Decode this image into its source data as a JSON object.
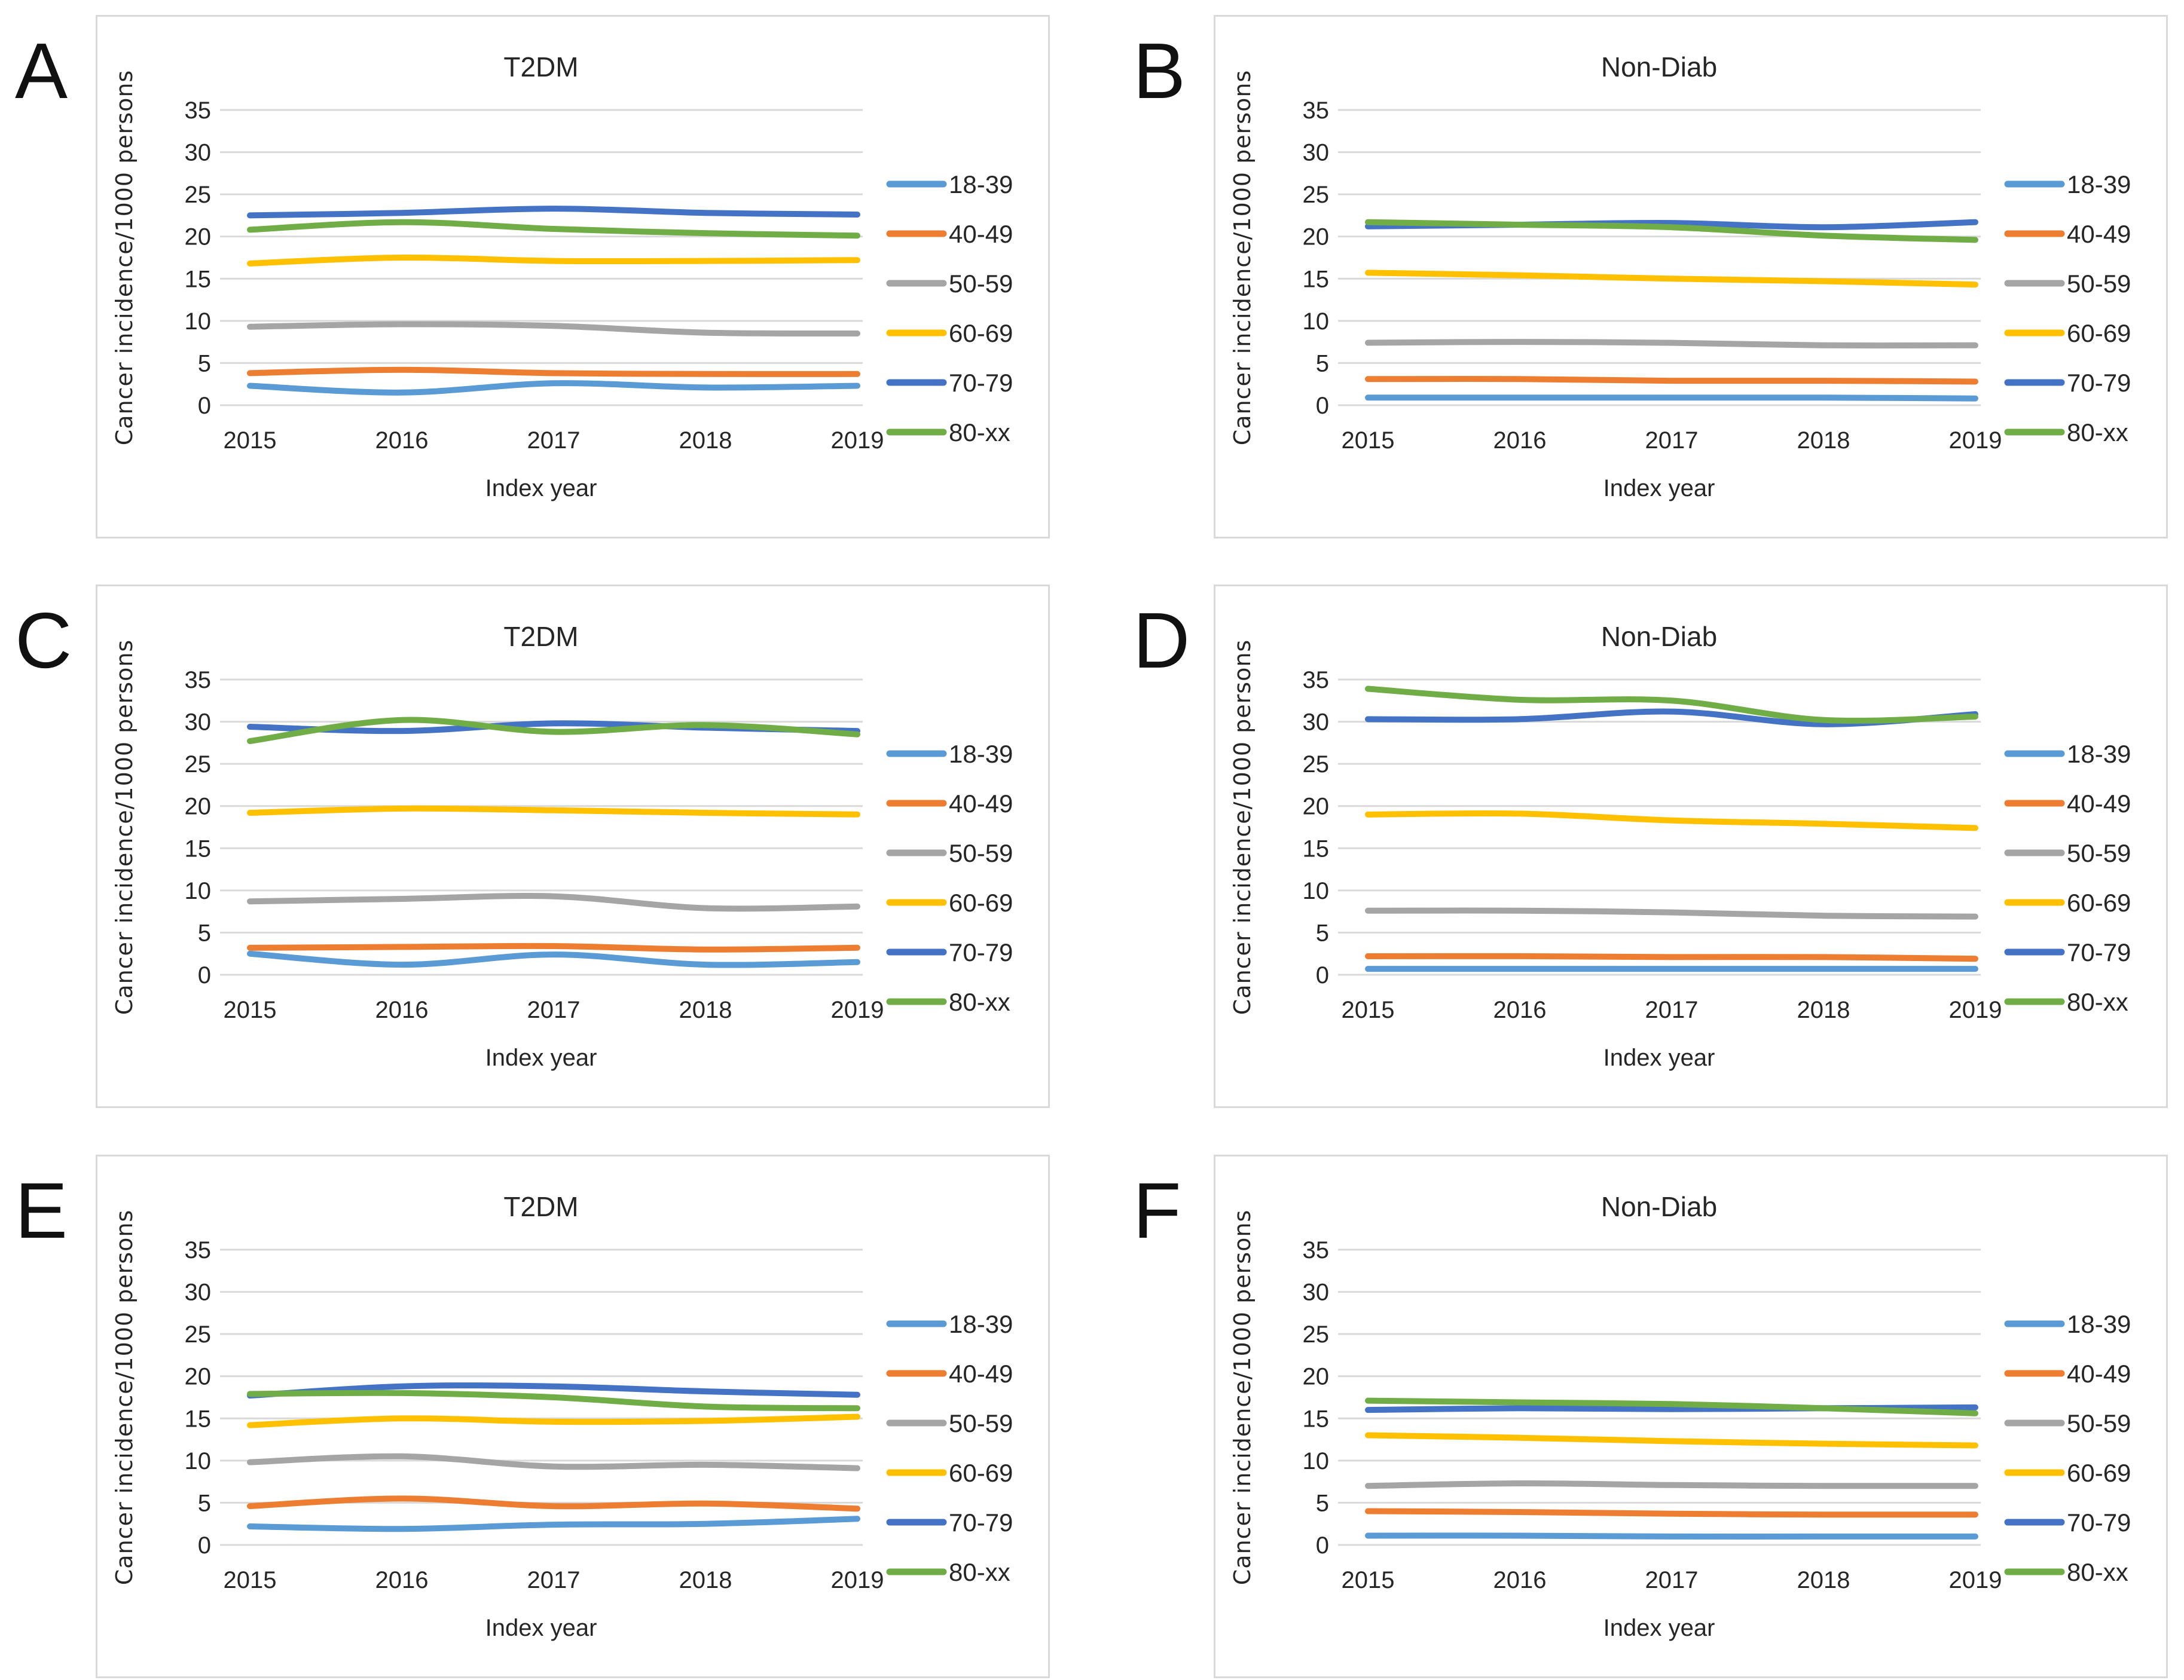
{
  "palette": {
    "18-39": "#5B9BD5",
    "40-49": "#ED7D31",
    "50-59": "#A5A5A5",
    "60-69": "#FFC000",
    "70-79": "#4472C4",
    "80-xx": "#70AD47"
  },
  "ui_colors": {
    "gridline": "#D9D9D9",
    "panel_border": "#D9D9D9",
    "text": "#262626"
  },
  "chart_data": [
    {
      "panel": "A",
      "type": "line",
      "title": "T2DM",
      "x": [
        2015,
        2016,
        2017,
        2018,
        2019
      ],
      "xlabel": "Index year",
      "ylabel": "Cancer incidence/1000 persons",
      "ylim": [
        0,
        35
      ],
      "yticks": [
        0,
        5,
        10,
        15,
        20,
        25,
        30,
        35
      ],
      "grid": "horizontal",
      "legend_position": "right",
      "series": [
        {
          "name": "18-39",
          "values": [
            2.3,
            1.5,
            2.6,
            2.1,
            2.3
          ]
        },
        {
          "name": "40-49",
          "values": [
            3.8,
            4.2,
            3.8,
            3.7,
            3.7
          ]
        },
        {
          "name": "50-59",
          "values": [
            9.3,
            9.6,
            9.4,
            8.6,
            8.5
          ]
        },
        {
          "name": "60-69",
          "values": [
            16.8,
            17.5,
            17.1,
            17.1,
            17.2
          ]
        },
        {
          "name": "70-79",
          "values": [
            22.5,
            22.8,
            23.3,
            22.8,
            22.6
          ]
        },
        {
          "name": "80-xx",
          "values": [
            20.8,
            21.7,
            20.9,
            20.4,
            20.1
          ]
        }
      ]
    },
    {
      "panel": "B",
      "type": "line",
      "title": "Non-Diab",
      "x": [
        2015,
        2016,
        2017,
        2018,
        2019
      ],
      "xlabel": "Index year",
      "ylabel": "Cancer incidence/1000 persons",
      "ylim": [
        0,
        35
      ],
      "yticks": [
        0,
        5,
        10,
        15,
        20,
        25,
        30,
        35
      ],
      "grid": "horizontal",
      "legend_position": "right",
      "series": [
        {
          "name": "18-39",
          "values": [
            0.9,
            0.9,
            0.9,
            0.9,
            0.8
          ]
        },
        {
          "name": "40-49",
          "values": [
            3.1,
            3.1,
            2.9,
            2.9,
            2.8
          ]
        },
        {
          "name": "50-59",
          "values": [
            7.4,
            7.5,
            7.4,
            7.1,
            7.1
          ]
        },
        {
          "name": "60-69",
          "values": [
            15.7,
            15.4,
            15.0,
            14.7,
            14.3
          ]
        },
        {
          "name": "70-79",
          "values": [
            21.2,
            21.4,
            21.6,
            21.1,
            21.7
          ]
        },
        {
          "name": "80-xx",
          "values": [
            21.7,
            21.4,
            21.1,
            20.1,
            19.6
          ]
        }
      ]
    },
    {
      "panel": "C",
      "type": "line",
      "title": "T2DM",
      "x": [
        2015,
        2016,
        2017,
        2018,
        2019
      ],
      "xlabel": "Index year",
      "ylabel": "Cancer incidence/1000 persons",
      "ylim": [
        0,
        35
      ],
      "yticks": [
        0,
        5,
        10,
        15,
        20,
        25,
        30,
        35
      ],
      "grid": "horizontal",
      "legend_position": "right",
      "series": [
        {
          "name": "18-39",
          "values": [
            2.5,
            1.2,
            2.4,
            1.2,
            1.5
          ]
        },
        {
          "name": "40-49",
          "values": [
            3.2,
            3.3,
            3.4,
            3.0,
            3.2
          ]
        },
        {
          "name": "50-59",
          "values": [
            8.7,
            9.0,
            9.3,
            7.9,
            8.1
          ]
        },
        {
          "name": "60-69",
          "values": [
            19.2,
            19.7,
            19.5,
            19.2,
            19.0
          ]
        },
        {
          "name": "70-79",
          "values": [
            29.4,
            28.9,
            29.8,
            29.3,
            28.9
          ]
        },
        {
          "name": "80-xx",
          "values": [
            27.7,
            30.2,
            28.8,
            29.6,
            28.5
          ]
        }
      ]
    },
    {
      "panel": "D",
      "type": "line",
      "title": "Non-Diab",
      "x": [
        2015,
        2016,
        2017,
        2018,
        2019
      ],
      "xlabel": "Index year",
      "ylabel": "Cancer incidence/1000 persons",
      "ylim": [
        0,
        35
      ],
      "yticks": [
        0,
        5,
        10,
        15,
        20,
        25,
        30,
        35
      ],
      "grid": "horizontal",
      "legend_position": "right",
      "series": [
        {
          "name": "18-39",
          "values": [
            0.7,
            0.7,
            0.7,
            0.7,
            0.7
          ]
        },
        {
          "name": "40-49",
          "values": [
            2.2,
            2.2,
            2.1,
            2.1,
            1.9
          ]
        },
        {
          "name": "50-59",
          "values": [
            7.6,
            7.6,
            7.4,
            7.0,
            6.9
          ]
        },
        {
          "name": "60-69",
          "values": [
            19.0,
            19.1,
            18.3,
            17.9,
            17.4
          ]
        },
        {
          "name": "70-79",
          "values": [
            30.3,
            30.3,
            31.2,
            29.7,
            30.9
          ]
        },
        {
          "name": "80-xx",
          "values": [
            33.9,
            32.6,
            32.5,
            30.2,
            30.6
          ]
        }
      ]
    },
    {
      "panel": "E",
      "type": "line",
      "title": "T2DM",
      "x": [
        2015,
        2016,
        2017,
        2018,
        2019
      ],
      "xlabel": "Index year",
      "ylabel": "Cancer incidence/1000 persons",
      "ylim": [
        0,
        35
      ],
      "yticks": [
        0,
        5,
        10,
        15,
        20,
        25,
        30,
        35
      ],
      "grid": "horizontal",
      "legend_position": "right",
      "series": [
        {
          "name": "18-39",
          "values": [
            2.2,
            1.9,
            2.4,
            2.5,
            3.1
          ]
        },
        {
          "name": "40-49",
          "values": [
            4.6,
            5.5,
            4.6,
            4.9,
            4.3
          ]
        },
        {
          "name": "50-59",
          "values": [
            9.8,
            10.5,
            9.3,
            9.5,
            9.1
          ]
        },
        {
          "name": "60-69",
          "values": [
            14.2,
            15.0,
            14.6,
            14.7,
            15.2
          ]
        },
        {
          "name": "70-79",
          "values": [
            17.7,
            18.8,
            18.8,
            18.2,
            17.8
          ]
        },
        {
          "name": "80-xx",
          "values": [
            17.9,
            18.0,
            17.5,
            16.4,
            16.2
          ]
        }
      ]
    },
    {
      "panel": "F",
      "type": "line",
      "title": "Non-Diab",
      "x": [
        2015,
        2016,
        2017,
        2018,
        2019
      ],
      "xlabel": "Index year",
      "ylabel": "Cancer incidence/1000 persons",
      "ylim": [
        0,
        35
      ],
      "yticks": [
        0,
        5,
        10,
        15,
        20,
        25,
        30,
        35
      ],
      "grid": "horizontal",
      "legend_position": "right",
      "series": [
        {
          "name": "18-39",
          "values": [
            1.1,
            1.1,
            1.0,
            1.0,
            1.0
          ]
        },
        {
          "name": "40-49",
          "values": [
            4.0,
            3.9,
            3.7,
            3.6,
            3.6
          ]
        },
        {
          "name": "50-59",
          "values": [
            7.0,
            7.3,
            7.1,
            7.0,
            7.0
          ]
        },
        {
          "name": "60-69",
          "values": [
            13.0,
            12.7,
            12.3,
            12.0,
            11.8
          ]
        },
        {
          "name": "70-79",
          "values": [
            16.0,
            16.2,
            16.1,
            16.2,
            16.3
          ]
        },
        {
          "name": "80-xx",
          "values": [
            17.1,
            16.9,
            16.7,
            16.2,
            15.6
          ]
        }
      ]
    }
  ]
}
